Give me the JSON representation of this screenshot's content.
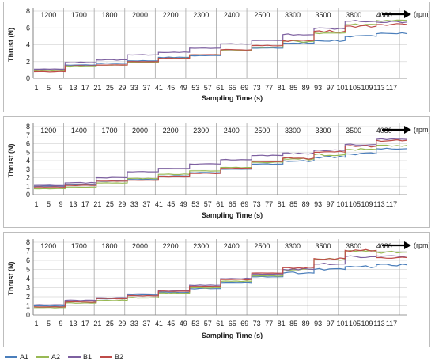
{
  "chart_data": [
    {
      "type": "line",
      "xlabel": "Sampling Time (s)",
      "ylabel": "Thrust (N)",
      "ylim": [
        0,
        8
      ],
      "yticks": [
        0,
        2,
        4,
        6,
        8
      ],
      "xlim": [
        1,
        120
      ],
      "xticks": [
        "1",
        "5",
        "9",
        "13",
        "17",
        "21",
        "25",
        "29",
        "33",
        "37",
        "41",
        "45",
        "49",
        "53",
        "57",
        "61",
        "65",
        "69",
        "73",
        "77",
        "81",
        "85",
        "89",
        "93",
        "97",
        "101",
        "105",
        "109",
        "113",
        "117"
      ],
      "rpm_unit": "(rpm)",
      "rpm_segments": [
        "1200",
        "1700",
        "1800",
        "2000",
        "2200",
        "2300",
        "2400",
        "2500",
        "3300",
        "3500",
        "3800",
        "4080"
      ],
      "series": [
        {
          "name": "A1",
          "color": "#4a7ebb",
          "values": [
            1.0,
            1.6,
            1.8,
            2.1,
            2.5,
            2.7,
            3.3,
            3.6,
            4.2,
            4.5,
            5.0,
            5.3
          ]
        },
        {
          "name": "A2",
          "color": "#98b954",
          "values": [
            0.9,
            1.4,
            1.6,
            1.9,
            2.4,
            2.8,
            3.3,
            3.7,
            4.4,
            5.4,
            6.4,
            6.9
          ]
        },
        {
          "name": "B1",
          "color": "#7d60a0",
          "values": [
            1.1,
            1.9,
            2.2,
            2.8,
            3.1,
            3.6,
            4.1,
            4.5,
            5.2,
            5.9,
            6.8,
            6.7
          ]
        },
        {
          "name": "B2",
          "color": "#be4b48",
          "values": [
            0.8,
            1.5,
            1.6,
            2.0,
            2.4,
            2.8,
            3.4,
            3.9,
            4.5,
            5.6,
            6.2,
            6.4
          ]
        }
      ]
    },
    {
      "type": "line",
      "xlabel": "Sampling Time (s)",
      "ylabel": "Thrust (N)",
      "ylim": [
        0,
        8
      ],
      "yticks": [
        0,
        1,
        2,
        3,
        4,
        5,
        6,
        7,
        8
      ],
      "xlim": [
        1,
        120
      ],
      "xticks": [
        "1",
        "5",
        "9",
        "13",
        "17",
        "21",
        "25",
        "29",
        "33",
        "37",
        "41",
        "45",
        "49",
        "53",
        "57",
        "61",
        "65",
        "69",
        "73",
        "77",
        "81",
        "85",
        "89",
        "93",
        "97",
        "101",
        "105",
        "109",
        "113",
        "117"
      ],
      "rpm_unit": "(rpm)",
      "rpm_segments": [
        "1200",
        "1400",
        "1700",
        "2000",
        "2200",
        "2300",
        "2400",
        "2500",
        "3300",
        "3300",
        "3500",
        "4080"
      ],
      "series": [
        {
          "name": "A1",
          "color": "#4a7ebb",
          "values": [
            1.0,
            1.2,
            1.6,
            1.8,
            2.2,
            2.6,
            3.0,
            3.6,
            4.0,
            4.4,
            4.8,
            5.4
          ]
        },
        {
          "name": "A2",
          "color": "#98b954",
          "values": [
            0.7,
            0.9,
            1.4,
            1.9,
            2.4,
            2.8,
            3.2,
            3.8,
            4.2,
            4.7,
            5.3,
            5.8
          ]
        },
        {
          "name": "B1",
          "color": "#7d60a0",
          "values": [
            1.1,
            1.4,
            2.0,
            2.7,
            3.1,
            3.6,
            4.1,
            4.6,
            4.9,
            5.2,
            5.9,
            6.5
          ]
        },
        {
          "name": "B2",
          "color": "#be4b48",
          "values": [
            0.9,
            1.1,
            1.6,
            1.7,
            2.1,
            2.5,
            3.1,
            3.9,
            4.3,
            5.0,
            5.7,
            6.4
          ]
        }
      ]
    },
    {
      "type": "line",
      "xlabel": "Sampling Time (s)",
      "ylabel": "Thrust (N)",
      "ylim": [
        0,
        8
      ],
      "yticks": [
        0,
        1,
        2,
        3,
        4,
        5,
        6,
        7,
        8
      ],
      "xlim": [
        1,
        120
      ],
      "xticks": [
        "1",
        "5",
        "9",
        "13",
        "17",
        "21",
        "25",
        "29",
        "33",
        "37",
        "41",
        "45",
        "49",
        "53",
        "57",
        "61",
        "65",
        "69",
        "73",
        "77",
        "81",
        "85",
        "89",
        "93",
        "97",
        "101",
        "105",
        "109",
        "113",
        "117"
      ],
      "rpm_unit": "(rpm)",
      "rpm_segments": [
        "1200",
        "1700",
        "1800",
        "2000",
        "2200",
        "2300",
        "2400",
        "2500",
        "3300",
        "3500",
        "3800",
        "4080"
      ],
      "series": [
        {
          "name": "A1",
          "color": "#4a7ebb",
          "values": [
            1.0,
            1.5,
            1.8,
            2.2,
            2.5,
            2.9,
            3.5,
            4.2,
            4.6,
            5.0,
            5.3,
            5.5
          ]
        },
        {
          "name": "A2",
          "color": "#98b954",
          "values": [
            0.8,
            1.3,
            1.6,
            1.9,
            2.4,
            3.0,
            3.7,
            4.3,
            5.0,
            6.1,
            7.0,
            6.9
          ]
        },
        {
          "name": "B1",
          "color": "#7d60a0",
          "values": [
            1.1,
            1.6,
            1.9,
            2.3,
            2.7,
            3.3,
            4.0,
            4.5,
            5.0,
            5.6,
            6.4,
            6.5
          ]
        },
        {
          "name": "B2",
          "color": "#be4b48",
          "values": [
            0.9,
            1.4,
            1.8,
            2.1,
            2.6,
            3.1,
            3.9,
            4.6,
            5.2,
            6.2,
            7.1,
            6.3
          ]
        }
      ]
    }
  ],
  "legend": [
    {
      "name": "A1",
      "color": "#4a7ebb"
    },
    {
      "name": "A2",
      "color": "#98b954"
    },
    {
      "name": "B1",
      "color": "#7d60a0"
    },
    {
      "name": "B2",
      "color": "#be4b48"
    }
  ]
}
